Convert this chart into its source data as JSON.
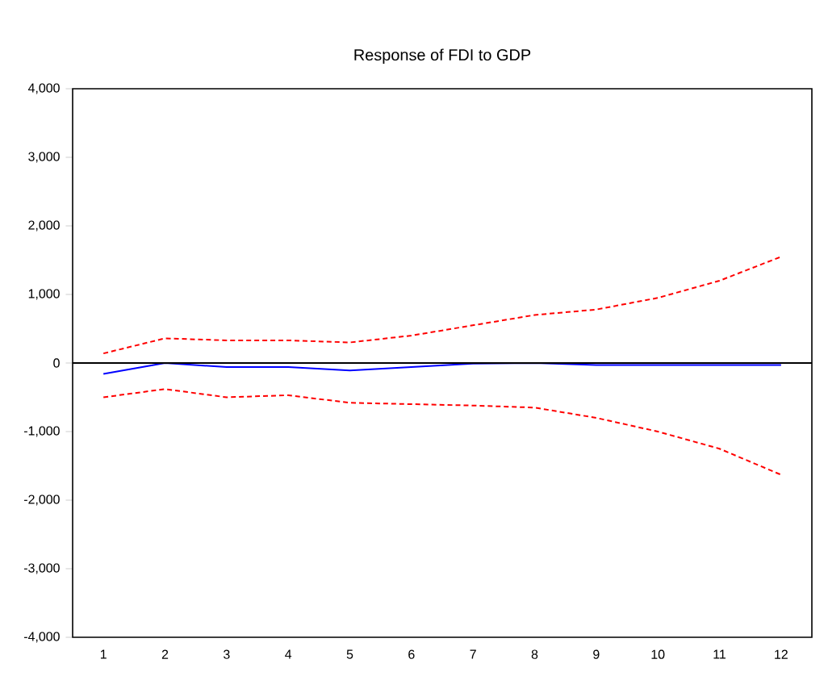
{
  "chart_data": {
    "type": "line",
    "title": "Response of FDI to GDP",
    "categories": [
      "1",
      "2",
      "3",
      "4",
      "5",
      "6",
      "7",
      "8",
      "9",
      "10",
      "11",
      "12"
    ],
    "series": [
      {
        "color": "#0000ff",
        "line_style": "solid",
        "values": [
          -160,
          0,
          -60,
          -60,
          -110,
          -60,
          -10,
          0,
          -30,
          -30,
          -30,
          -30
        ]
      },
      {
        "color": "#ff0000",
        "line_style": "dashed",
        "values": [
          140,
          360,
          330,
          330,
          300,
          400,
          550,
          700,
          780,
          950,
          1200,
          1550
        ]
      },
      {
        "color": "#ff0000",
        "line_style": "dashed",
        "values": [
          -500,
          -380,
          -500,
          -470,
          -580,
          -600,
          -620,
          -650,
          -800,
          -1000,
          -1250,
          -1630
        ]
      }
    ],
    "ylim": [
      -4000,
      4000
    ],
    "yticks": [
      {
        "value": -4000,
        "label": "-4,000"
      },
      {
        "value": -3000,
        "label": "-3,000"
      },
      {
        "value": -2000,
        "label": "-2,000"
      },
      {
        "value": -1000,
        "label": "-1,000"
      },
      0,
      {
        "value": 1000,
        "label": "1,000"
      },
      {
        "value": 2000,
        "label": "2,000"
      },
      {
        "value": 3000,
        "label": "3,000"
      },
      {
        "value": 4000,
        "label": "4,000"
      }
    ],
    "ref_lines": [
      {
        "axis": "y",
        "value": 0,
        "color": "#000000"
      }
    ],
    "grid": false
  }
}
